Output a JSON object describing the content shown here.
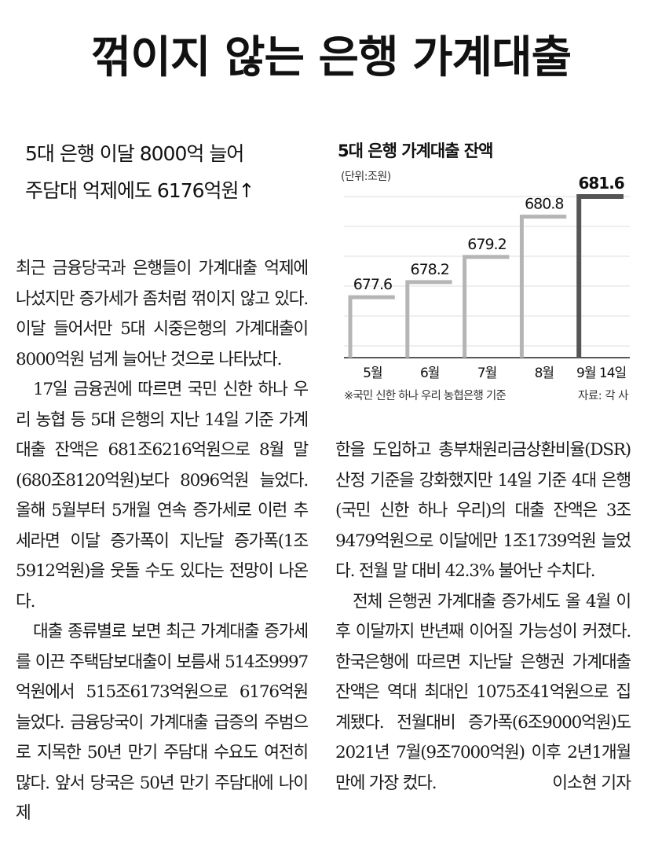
{
  "headline": "꺾이지 않는 은행 가계대출",
  "subheadlines": [
    "5대 은행 이달 8000억 늘어",
    "주담대 억제에도 6176억원↑"
  ],
  "article": {
    "paragraphs": [
      "최근 금융당국과 은행들이 가계대출 억제에 나섰지만 증가세가 좀처럼 꺾이지 않고 있다. 이달 들어서만 5대 시중은행의 가계대출이 8000억원 넘게 늘어난 것으로 나타났다.",
      "17일 금융권에 따르면 국민 신한 하나 우리 농협 등 5대 은행의 지난 14일 기준 가계대출 잔액은 681조6216억원으로 8월 말(680조8120억원)보다 8096억원 늘었다. 올해 5월부터 5개월 연속 증가세로 이런 추세라면 이달 증가폭이 지난달 증가폭(1조5912억원)을 웃돌 수도 있다는 전망이 나온다.",
      "대출 종류별로 보면 최근 가계대출 증가세를 이끈 주택담보대출이 보름새 514조9997억원에서 515조6173억원으로 6176억원 늘었다. 금융당국이 가계대출 급증의 주범으로 지목한 50년 만기 주담대 수요도 여전히 많다. 앞서 당국은 50년 만기 주담대에 나이 제",
      "한을 도입하고 총부채원리금상환비율(DSR) 산정 기준을 강화했지만 14일 기준 4대 은행(국민 신한 하나 우리)의 대출 잔액은 3조9479억원으로 이달에만 1조1739억원 늘었다. 전월 말 대비 42.3% 불어난 수치다.",
      "전체 은행권 가계대출 증가세도 올 4월 이후 이달까지 반년째 이어질 가능성이 커졌다. 한국은행에 따르면 지난달 은행권 가계대출 잔액은 역대 최대인 1075조41억원으로 집계됐다. 전월대비 증가폭(6조9000억원)도 2021년 7월(9조7000억원) 이후 2년1개월 만에 가장 컸다."
    ],
    "byline": "이소현 기자"
  },
  "chart_data": {
    "type": "bar",
    "title": "5대 은행 가계대출 잔액",
    "unit": "(단위:조원)",
    "categories": [
      "5월",
      "6월",
      "7월",
      "8월",
      "9월 14일"
    ],
    "values": [
      677.6,
      678.2,
      679.2,
      680.8,
      681.6
    ],
    "value_labels": [
      "677.6",
      "678.2",
      "679.2",
      "680.8",
      "681.6"
    ],
    "colors": [
      "#b5b5b5",
      "#b5b5b5",
      "#b5b5b5",
      "#b5b5b5",
      "#555555"
    ],
    "note": "※국민 신한 하나 우리 농협은행 기준",
    "source": "자료: 각 사",
    "grid": true
  }
}
